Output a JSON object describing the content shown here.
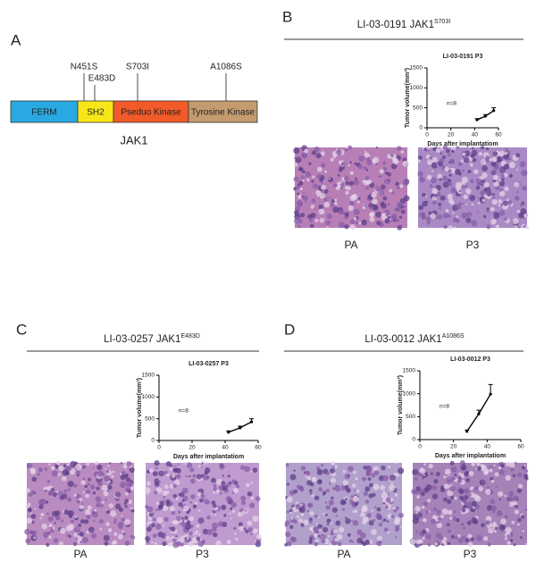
{
  "panel_labels": [
    "A",
    "B",
    "C",
    "D"
  ],
  "diagram": {
    "protein": "JAK1",
    "domains": [
      "FERM",
      "SH2",
      "Pseduo Kinase",
      "Tyrosine Kinase"
    ],
    "mutations": [
      "N451S",
      "E483D",
      "S703I",
      "A1086S"
    ]
  },
  "samples": [
    {
      "name": "LI-03-0191 JAK1",
      "mutation": "S703I",
      "images": [
        "PA",
        "P3"
      ]
    },
    {
      "name": "LI-03-0257 JAK1",
      "mutation": "E483D",
      "images": [
        "PA",
        "P3"
      ]
    },
    {
      "name": "LI-03-0012 JAK1",
      "mutation": "A1086S",
      "images": [
        "PA",
        "P3"
      ]
    }
  ],
  "chart_data": [
    {
      "type": "line",
      "title": "LI-03-0191 P3",
      "x_label": "Days after implantatiom",
      "y_label": "Tumor volume(mm³)",
      "annotation": "n=8",
      "x": [
        42,
        49,
        56
      ],
      "values": [
        200,
        290,
        430
      ],
      "errors": [
        30,
        40,
        70
      ],
      "color": "#000000",
      "xlim": [
        0,
        60
      ],
      "xticks": [
        0,
        20,
        40,
        60
      ],
      "ylim": [
        0,
        1500
      ],
      "yticks": [
        0,
        500,
        1000,
        1500
      ]
    },
    {
      "type": "line",
      "title": "LI-03-0257 P3",
      "x_label": "Days after implantatiom",
      "y_label": "Tumor volume(mm³)",
      "annotation": "n=8",
      "x": [
        42,
        49,
        56
      ],
      "values": [
        190,
        290,
        430
      ],
      "errors": [
        30,
        40,
        70
      ],
      "color": "#000000",
      "xlim": [
        0,
        60
      ],
      "xticks": [
        0,
        20,
        40,
        60
      ],
      "ylim": [
        0,
        1500
      ],
      "yticks": [
        0,
        500,
        1000,
        1500
      ]
    },
    {
      "type": "line",
      "title": "LI-03-0012 P3",
      "x_label": "Days after implantatiom",
      "y_label": "Tumor volume(mm³)",
      "annotation": "n=8",
      "x": [
        28,
        35,
        42
      ],
      "values": [
        180,
        560,
        990
      ],
      "errors": [
        30,
        80,
        210
      ],
      "color": "#000000",
      "xlim": [
        0,
        60
      ],
      "xticks": [
        0,
        20,
        40,
        60
      ],
      "ylim": [
        0,
        1500
      ],
      "yticks": [
        0,
        500,
        1000,
        1500
      ]
    }
  ]
}
